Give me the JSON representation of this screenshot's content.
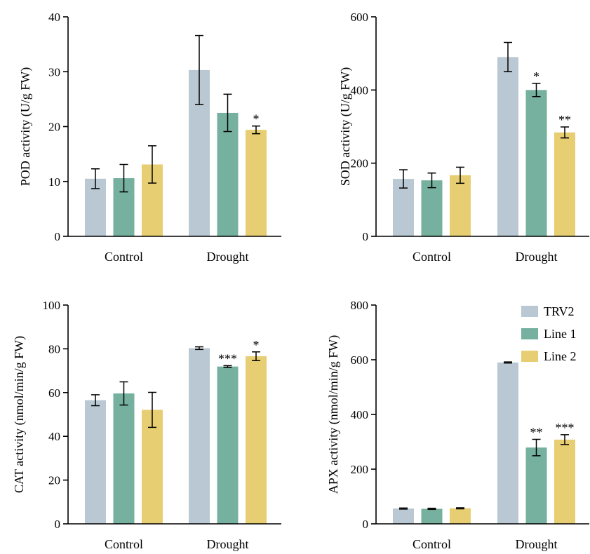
{
  "legend": {
    "placement": "top-right of APX panel",
    "entries": [
      {
        "name": "TRV2",
        "color": "#b9c8d2"
      },
      {
        "name": "Line 1",
        "color": "#76b09e"
      },
      {
        "name": "Line 2",
        "color": "#e8ce72"
      }
    ]
  },
  "chart_data": [
    {
      "id": "pod",
      "type": "bar",
      "ylabel": "POD activity (U/g FW)",
      "ylim": [
        0,
        40
      ],
      "yticks": [
        0,
        10,
        20,
        30,
        40
      ],
      "categories": [
        "Control",
        "Drought"
      ],
      "series": [
        {
          "name": "TRV2",
          "values": [
            10.5,
            30.3
          ],
          "errors": [
            1.8,
            6.3
          ],
          "sig": [
            "",
            ""
          ]
        },
        {
          "name": "Line 1",
          "values": [
            10.6,
            22.5
          ],
          "errors": [
            2.5,
            3.4
          ],
          "sig": [
            "",
            ""
          ]
        },
        {
          "name": "Line 2",
          "values": [
            13.1,
            19.4
          ],
          "errors": [
            3.4,
            0.7
          ],
          "sig": [
            "",
            "*"
          ]
        }
      ]
    },
    {
      "id": "sod",
      "type": "bar",
      "ylabel": "SOD activity (U/g FW)",
      "ylim": [
        0,
        600
      ],
      "yticks": [
        0,
        200,
        400,
        600
      ],
      "categories": [
        "Control",
        "Drought"
      ],
      "series": [
        {
          "name": "TRV2",
          "values": [
            157,
            490
          ],
          "errors": [
            25,
            40
          ],
          "sig": [
            "",
            ""
          ]
        },
        {
          "name": "Line 1",
          "values": [
            153,
            400
          ],
          "errors": [
            20,
            18
          ],
          "sig": [
            "",
            "*"
          ]
        },
        {
          "name": "Line 2",
          "values": [
            167,
            284
          ],
          "errors": [
            22,
            15
          ],
          "sig": [
            "",
            "**"
          ]
        }
      ]
    },
    {
      "id": "cat",
      "type": "bar",
      "ylabel": "CAT activity (nmol/min/g FW)",
      "ylim": [
        0,
        100
      ],
      "yticks": [
        0,
        20,
        40,
        60,
        80,
        100
      ],
      "categories": [
        "Control",
        "Drought"
      ],
      "series": [
        {
          "name": "TRV2",
          "values": [
            56.5,
            80.3
          ],
          "errors": [
            2.5,
            0.6
          ],
          "sig": [
            "",
            ""
          ]
        },
        {
          "name": "Line 1",
          "values": [
            59.6,
            71.9
          ],
          "errors": [
            5.3,
            0.4
          ],
          "sig": [
            "",
            "***"
          ]
        },
        {
          "name": "Line 2",
          "values": [
            52.1,
            76.6
          ],
          "errors": [
            8.0,
            2.0
          ],
          "sig": [
            "",
            "*"
          ]
        }
      ]
    },
    {
      "id": "apx",
      "type": "bar",
      "ylabel": "APX activity (nmol/min/g FW)",
      "ylim": [
        0,
        800
      ],
      "yticks": [
        0,
        200,
        400,
        600,
        800
      ],
      "categories": [
        "Control",
        "Drought"
      ],
      "series": [
        {
          "name": "TRV2",
          "values": [
            56,
            590
          ],
          "errors": [
            2,
            2
          ],
          "sig": [
            "",
            ""
          ]
        },
        {
          "name": "Line 1",
          "values": [
            55,
            279
          ],
          "errors": [
            2,
            30
          ],
          "sig": [
            "",
            "**"
          ]
        },
        {
          "name": "Line 2",
          "values": [
            57,
            308
          ],
          "errors": [
            2,
            18
          ],
          "sig": [
            "",
            "***"
          ]
        }
      ]
    }
  ]
}
